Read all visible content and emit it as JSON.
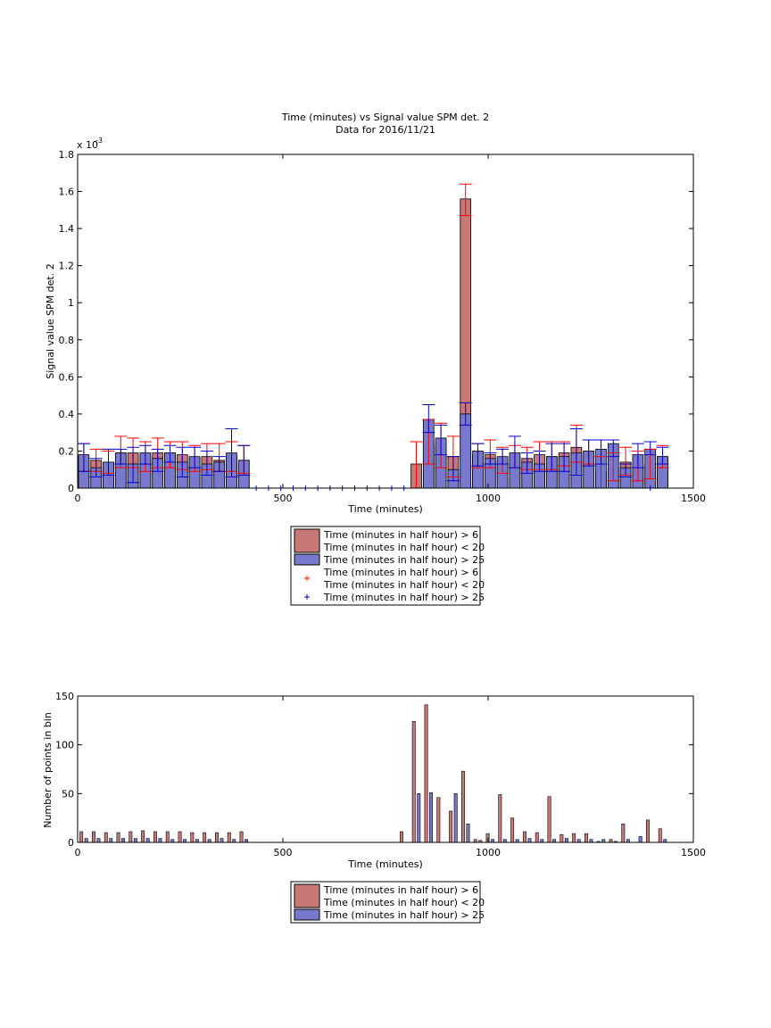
{
  "chart_data": [
    {
      "type": "bar",
      "title": "Time (minutes) vs Signal value SPM det. 2",
      "subtitle": "Data for 2016/11/21",
      "xlabel": "Time (minutes)",
      "ylabel": "Signal value SPM det. 2",
      "y_multiplier": "x 10",
      "y_multiplier_exp": "-3",
      "xlim": [
        0,
        1500
      ],
      "ylim": [
        0,
        1.8
      ],
      "y_unit_scale": 0.001,
      "xticks": [
        0,
        500,
        1000,
        1500
      ],
      "xtick_labels": [
        "0",
        "500",
        "1000",
        "1500"
      ],
      "yticks": [
        0,
        0.2,
        0.4,
        0.6,
        0.8,
        1,
        1.2,
        1.4,
        1.6,
        1.8
      ],
      "ytick_labels": [
        "0",
        "0.2",
        "0.4",
        "0.6",
        "0.8",
        "1",
        "1.2",
        "1.4",
        "1.6",
        "1.8"
      ],
      "grid": false,
      "legend_placement": "below",
      "colors": {
        "red_bar": "#c87878",
        "blue_bar": "#7878cc",
        "red_err": "#ff0000",
        "blue_err": "#0000cc"
      },
      "bin_width": 30,
      "series": [
        {
          "name": "Time (minutes in half hour) > 6 Time (minutes in half hour) < 20",
          "kind": "bar+errorbar",
          "x": [
            15,
            45,
            75,
            105,
            135,
            165,
            195,
            225,
            255,
            285,
            315,
            345,
            375,
            405,
            825,
            855,
            885,
            915,
            945,
            975,
            1005,
            1035,
            1065,
            1095,
            1125,
            1155,
            1185,
            1215,
            1245,
            1275,
            1305,
            1335,
            1365,
            1395,
            1425
          ],
          "values": [
            0.16,
            0.15,
            0.14,
            0.19,
            0.19,
            0.17,
            0.19,
            0.19,
            0.18,
            0.16,
            0.17,
            0.15,
            0.17,
            0.15,
            0.13,
            0.25,
            0.23,
            0.17,
            1.56,
            0.18,
            0.18,
            0.15,
            0.17,
            0.16,
            0.18,
            0.17,
            0.19,
            0.22,
            0.2,
            0.09,
            0.11,
            0.14,
            0.12,
            0.13,
            0.17
          ],
          "err_low": [
            0.09,
            0.09,
            0.08,
            0.11,
            0.11,
            0.09,
            0.11,
            0.11,
            0.1,
            0.09,
            0.1,
            0.09,
            0.09,
            0.08,
            0.0,
            0.13,
            0.11,
            0.06,
            1.47,
            0.11,
            0.11,
            0.08,
            0.11,
            0.1,
            0.1,
            0.1,
            0.12,
            0.14,
            0.13,
            0.0,
            0.04,
            0.07,
            0.04,
            0.05,
            0.11
          ],
          "err_high": [
            0.24,
            0.21,
            0.2,
            0.28,
            0.27,
            0.25,
            0.27,
            0.25,
            0.25,
            0.23,
            0.24,
            0.24,
            0.25,
            0.23,
            0.25,
            0.37,
            0.35,
            0.28,
            1.64,
            0.24,
            0.26,
            0.22,
            0.23,
            0.22,
            0.25,
            0.25,
            0.25,
            0.34,
            0.26,
            0.17,
            0.19,
            0.22,
            0.2,
            0.21,
            0.23
          ]
        },
        {
          "name": "Time (minutes in half hour) > 25",
          "kind": "bar+errorbar",
          "x": [
            15,
            45,
            75,
            105,
            135,
            165,
            195,
            225,
            255,
            285,
            315,
            345,
            375,
            405,
            855,
            885,
            915,
            945,
            975,
            1005,
            1035,
            1065,
            1095,
            1125,
            1155,
            1185,
            1215,
            1245,
            1275,
            1305,
            1335,
            1365,
            1395,
            1425
          ],
          "values": [
            0.18,
            0.11,
            0.14,
            0.19,
            0.13,
            0.19,
            0.16,
            0.19,
            0.14,
            0.17,
            0.13,
            0.14,
            0.19,
            0.15,
            0.37,
            0.27,
            0.1,
            0.4,
            0.2,
            0.16,
            0.17,
            0.19,
            0.14,
            0.13,
            0.17,
            0.17,
            0.19,
            0.2,
            0.21,
            0.24,
            0.11,
            0.18,
            0.21,
            0.17
          ],
          "err_low": [
            0.09,
            0.06,
            0.07,
            0.13,
            0.03,
            0.13,
            0.09,
            0.14,
            0.06,
            0.11,
            0.07,
            0.09,
            0.06,
            0.07,
            0.3,
            0.18,
            0.04,
            0.34,
            0.12,
            0.13,
            0.13,
            0.11,
            0.08,
            0.09,
            0.09,
            0.09,
            0.07,
            0.12,
            0.13,
            0.17,
            0.06,
            0.11,
            0.18,
            0.13
          ],
          "err_high": [
            0.24,
            0.16,
            0.21,
            0.21,
            0.22,
            0.23,
            0.21,
            0.23,
            0.22,
            0.22,
            0.2,
            0.17,
            0.32,
            0.23,
            0.45,
            0.34,
            0.17,
            0.46,
            0.24,
            0.19,
            0.21,
            0.28,
            0.19,
            0.2,
            0.24,
            0.24,
            0.32,
            0.26,
            0.26,
            0.26,
            0.13,
            0.24,
            0.25,
            0.22
          ]
        },
        {
          "name": "Time (minutes in half hour) > 6 Time (minutes in half hour) < 20",
          "kind": "zero-markers",
          "marker": "+",
          "x": []
        },
        {
          "name": "Time (minutes in half hour) > 25",
          "kind": "zero-markers",
          "marker": "+",
          "x": [
            435,
            465,
            495,
            525,
            555,
            585,
            615,
            645,
            675,
            705,
            735,
            765,
            795,
            1395
          ]
        }
      ],
      "legend_entries": [
        {
          "kind": "bar",
          "color": "#c87878",
          "lines": [
            "Time (minutes in half hour) > 6",
            "Time (minutes in half hour) < 20"
          ]
        },
        {
          "kind": "bar",
          "color": "#7878cc",
          "lines": [
            "Time (minutes in half hour) > 25"
          ]
        },
        {
          "kind": "marker",
          "color": "#ff0000",
          "lines": [
            "Time (minutes in half hour) > 6",
            "Time (minutes in half hour) < 20"
          ]
        },
        {
          "kind": "marker",
          "color": "#0000cc",
          "lines": [
            "Time (minutes in half hour) > 25"
          ]
        }
      ]
    },
    {
      "type": "bar",
      "title": "",
      "xlabel": "Time (minutes)",
      "ylabel": "Number of points in bin",
      "xlim": [
        0,
        1500
      ],
      "ylim": [
        0,
        150
      ],
      "xticks": [
        0,
        500,
        1000,
        1500
      ],
      "xtick_labels": [
        "0",
        "500",
        "1000",
        "1500"
      ],
      "yticks": [
        0,
        50,
        100,
        150
      ],
      "ytick_labels": [
        "0",
        "50",
        "100",
        "150"
      ],
      "grid": false,
      "legend_placement": "below",
      "colors": {
        "red_bar": "#c87878",
        "blue_bar": "#7878cc"
      },
      "bin_width": 30,
      "series": [
        {
          "name": "Time (minutes in half hour) > 6 Time (minutes in half hour) < 20",
          "x": [
            15,
            45,
            75,
            105,
            135,
            165,
            195,
            225,
            255,
            285,
            315,
            345,
            375,
            405,
            795,
            825,
            855,
            885,
            915,
            945,
            975,
            1005,
            1035,
            1065,
            1095,
            1125,
            1155,
            1185,
            1215,
            1245,
            1275,
            1305,
            1335,
            1365,
            1395,
            1425
          ],
          "values": [
            11,
            11,
            10,
            10,
            11,
            12,
            11,
            11,
            11,
            10,
            10,
            10,
            10,
            11,
            11,
            124,
            141,
            46,
            32,
            73,
            3,
            9,
            49,
            25,
            11,
            10,
            47,
            8,
            9,
            9,
            1,
            3,
            19,
            0,
            23,
            14
          ]
        },
        {
          "name": "Time (minutes in half hour) > 25",
          "x": [
            15,
            45,
            75,
            105,
            135,
            165,
            195,
            225,
            255,
            285,
            315,
            345,
            375,
            405,
            825,
            855,
            885,
            915,
            945,
            975,
            1005,
            1035,
            1065,
            1095,
            1125,
            1155,
            1185,
            1215,
            1245,
            1275,
            1305,
            1335,
            1365,
            1395,
            1425
          ],
          "values": [
            4,
            4,
            4,
            4,
            4,
            4,
            4,
            3,
            3,
            3,
            3,
            4,
            3,
            3,
            50,
            51,
            0,
            50,
            19,
            2,
            3,
            3,
            3,
            4,
            3,
            3,
            4,
            3,
            3,
            3,
            1,
            3,
            6,
            0,
            3
          ]
        }
      ],
      "legend_entries": [
        {
          "kind": "bar",
          "color": "#c87878",
          "lines": [
            "Time (minutes in half hour) > 6",
            "Time (minutes in half hour) < 20"
          ]
        },
        {
          "kind": "bar",
          "color": "#7878cc",
          "lines": [
            "Time (minutes in half hour) > 25"
          ]
        }
      ]
    }
  ]
}
